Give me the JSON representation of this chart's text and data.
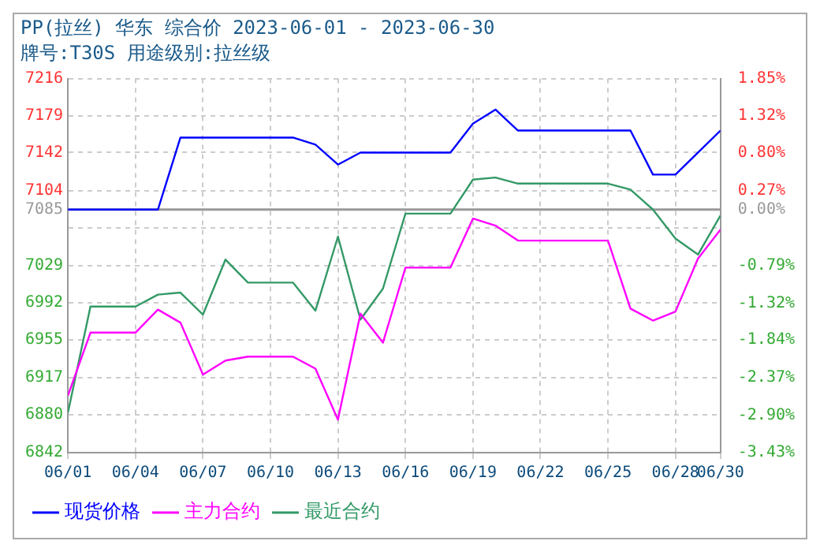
{
  "chart_data": {
    "type": "line",
    "title": "PP(拉丝) 华东 综合价 2023-06-01 - 2023-06-30",
    "subtitle": "牌号:T30S 用途级别:拉丝级",
    "xlim": [
      "2023-06-01",
      "2023-06-30"
    ],
    "xticks": [
      {
        "value": "2023-06-01",
        "label": "06/01"
      },
      {
        "value": "2023-06-04",
        "label": "06/04"
      },
      {
        "value": "2023-06-07",
        "label": "06/07"
      },
      {
        "value": "2023-06-10",
        "label": "06/10"
      },
      {
        "value": "2023-06-13",
        "label": "06/13"
      },
      {
        "value": "2023-06-16",
        "label": "06/16"
      },
      {
        "value": "2023-06-19",
        "label": "06/19"
      },
      {
        "value": "2023-06-22",
        "label": "06/22"
      },
      {
        "value": "2023-06-25",
        "label": "06/25"
      },
      {
        "value": "2023-06-28",
        "label": "06/28"
      },
      {
        "value": "2023-06-30",
        "label": "06/30"
      }
    ],
    "ylim": [
      6842,
      7216
    ],
    "yticks": [
      {
        "value": 6842,
        "label": "6842"
      },
      {
        "value": 6880,
        "label": "6880"
      },
      {
        "value": 6916.8,
        "label": "6917"
      },
      {
        "value": 6955,
        "label": "6955"
      },
      {
        "value": 6991.6,
        "label": "6992"
      },
      {
        "value": 7029,
        "label": "7029"
      },
      {
        "value": 7066.4,
        "label": null
      },
      {
        "value": 7085,
        "label": "7085"
      },
      {
        "value": 7103.8,
        "label": "7104"
      },
      {
        "value": 7142,
        "label": "7142"
      },
      {
        "value": 7178.6,
        "label": "7179"
      },
      {
        "value": 7216,
        "label": "7216"
      }
    ],
    "y2lim": [
      -3.43,
      1.85
    ],
    "y2ticks": [
      {
        "value": -3.43,
        "label": "-3.43%"
      },
      {
        "value": -2.9,
        "label": "-2.90%"
      },
      {
        "value": -2.37,
        "label": "-2.37%"
      },
      {
        "value": -1.84,
        "label": "-1.84%"
      },
      {
        "value": -1.32,
        "label": "-1.32%"
      },
      {
        "value": -0.79,
        "label": "-0.79%"
      },
      {
        "value": 0,
        "label": "0.00%"
      },
      {
        "value": 0.27,
        "label": "0.27%"
      },
      {
        "value": 0.8,
        "label": "0.80%"
      },
      {
        "value": 1.32,
        "label": "1.32%"
      },
      {
        "value": 1.85,
        "label": "1.85%"
      }
    ],
    "ref_lines": [
      {
        "axis": "y",
        "value": 7085,
        "color": "#999999"
      }
    ],
    "grid": true,
    "legend": "bottom",
    "marker": "none",
    "line_style": "solid",
    "series": [
      {
        "name": "现货价格",
        "color": "#0000ff",
        "x": [
          "2023-06-01",
          "2023-06-05",
          "2023-06-06",
          "2023-06-11",
          "2023-06-12",
          "2023-06-13",
          "2023-06-14",
          "2023-06-18",
          "2023-06-19",
          "2023-06-20",
          "2023-06-21",
          "2023-06-26",
          "2023-06-27",
          "2023-06-28",
          "2023-06-30"
        ],
        "values": [
          7085,
          7085,
          7157,
          7157,
          7150,
          7130,
          7142,
          7142,
          7171,
          7185,
          7164,
          7164,
          7120,
          7120,
          7164
        ]
      },
      {
        "name": "主力合约",
        "color": "#ff00ff",
        "x": [
          "2023-06-01",
          "2023-06-02",
          "2023-06-04",
          "2023-06-05",
          "2023-06-06",
          "2023-06-07",
          "2023-06-08",
          "2023-06-09",
          "2023-06-11",
          "2023-06-12",
          "2023-06-13",
          "2023-06-14",
          "2023-06-15",
          "2023-06-16",
          "2023-06-18",
          "2023-06-19",
          "2023-06-20",
          "2023-06-21",
          "2023-06-25",
          "2023-06-26",
          "2023-06-27",
          "2023-06-28",
          "2023-06-29",
          "2023-06-30"
        ],
        "values": [
          6899,
          6962,
          6962,
          6985,
          6972,
          6920,
          6934,
          6938,
          6938,
          6926,
          6875,
          6981,
          6952,
          7027,
          7027,
          7076,
          7069,
          7054,
          7054,
          6986,
          6974,
          6983,
          7036,
          7065
        ]
      },
      {
        "name": "最近合约",
        "color": "#339966",
        "x": [
          "2023-06-01",
          "2023-06-02",
          "2023-06-04",
          "2023-06-05",
          "2023-06-06",
          "2023-06-07",
          "2023-06-08",
          "2023-06-09",
          "2023-06-11",
          "2023-06-12",
          "2023-06-13",
          "2023-06-14",
          "2023-06-15",
          "2023-06-16",
          "2023-06-18",
          "2023-06-19",
          "2023-06-20",
          "2023-06-21",
          "2023-06-25",
          "2023-06-26",
          "2023-06-27",
          "2023-06-28",
          "2023-06-29",
          "2023-06-30"
        ],
        "values": [
          6882,
          6988,
          6988,
          7000,
          7002,
          6980,
          7035,
          7012,
          7012,
          6984,
          7058,
          6975,
          7006,
          7081,
          7081,
          7115,
          7117,
          7111,
          7111,
          7105,
          7085,
          7056,
          7040,
          7079
        ]
      }
    ]
  }
}
